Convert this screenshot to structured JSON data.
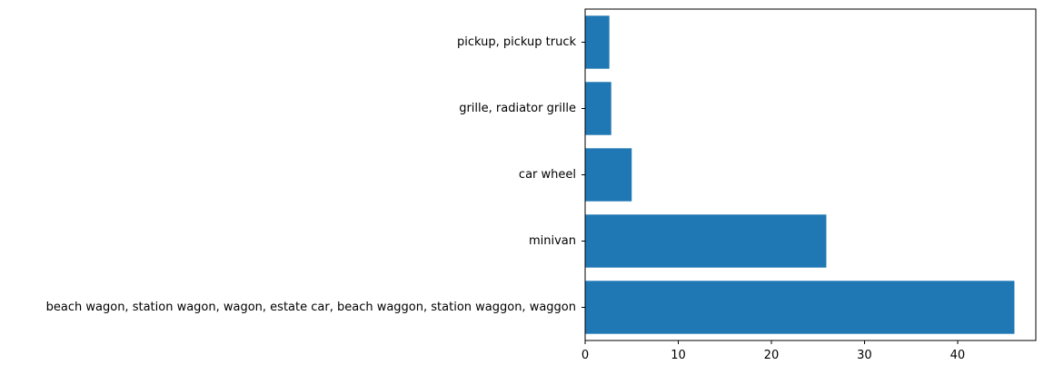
{
  "chart_data": {
    "type": "bar",
    "orientation": "horizontal",
    "categories": [
      "beach wagon, station wagon, wagon, estate car, beach waggon, station waggon, waggon",
      "minivan",
      "car wheel",
      "grille, radiator grille",
      "pickup, pickup truck"
    ],
    "values": [
      46.1,
      25.9,
      5.0,
      2.8,
      2.6
    ],
    "bar_color": "#1f77b4",
    "title": "",
    "xlabel": "",
    "ylabel": "",
    "xlim": [
      0,
      48.4
    ],
    "xticks": [
      0,
      10,
      20,
      30,
      40
    ],
    "xtick_labels": [
      "0",
      "10",
      "20",
      "30",
      "40"
    ],
    "grid": false
  }
}
